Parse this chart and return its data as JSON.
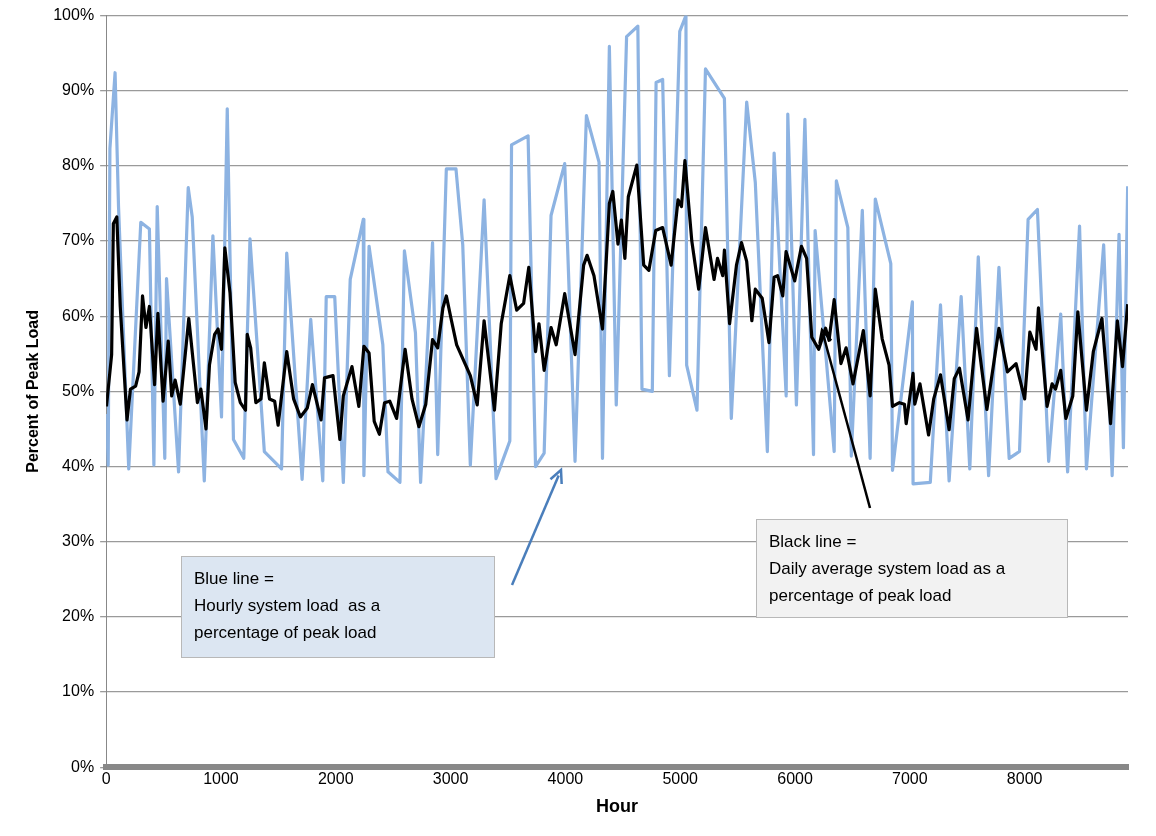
{
  "chart_data": {
    "type": "line",
    "xlabel": "Hour",
    "ylabel": "Percent of Peak Load",
    "xlim": [
      0,
      8900
    ],
    "xticks": [
      0,
      1000,
      2000,
      3000,
      4000,
      5000,
      6000,
      7000,
      8000
    ],
    "ylim": [
      0,
      100
    ],
    "yticks": [
      {
        "value": 0,
        "label": "0%"
      },
      {
        "value": 10,
        "label": "10%"
      },
      {
        "value": 20,
        "label": "20%"
      },
      {
        "value": 30,
        "label": "30%"
      },
      {
        "value": 40,
        "label": "40%"
      },
      {
        "value": 50,
        "label": "50%"
      },
      {
        "value": 60,
        "label": "60%"
      },
      {
        "value": 70,
        "label": "70%"
      },
      {
        "value": 80,
        "label": "80%"
      },
      {
        "value": 90,
        "label": "90%"
      },
      {
        "value": 100,
        "label": "100%"
      }
    ],
    "grid": "y",
    "legend": false,
    "marker": "none",
    "line_style": "solid",
    "series": [
      {
        "color": "#8db3e2",
        "x": [
          3,
          18,
          33,
          78,
          108,
          197,
          302,
          377,
          416,
          445,
          511,
          526,
          631,
          715,
          750,
          855,
          930,
          1005,
          1055,
          1109,
          1199,
          1253,
          1378,
          1528,
          1573,
          1707,
          1782,
          1887,
          1917,
          1991,
          2066,
          2126,
          2240,
          2245,
          2290,
          2410,
          2455,
          2559,
          2598,
          2694,
          2739,
          2843,
          2888,
          2963,
          3047,
          3106,
          3172,
          3292,
          3396,
          3516,
          3531,
          3675,
          3740,
          3815,
          3875,
          3994,
          4084,
          4183,
          4293,
          4323,
          4383,
          4443,
          4533,
          4631,
          4667,
          4757,
          4790,
          4847,
          4906,
          4996,
          5050,
          5056,
          5146,
          5220,
          5385,
          5445,
          5579,
          5654,
          5759,
          5818,
          5923,
          5937,
          6012,
          6086,
          6161,
          6175,
          6341,
          6360,
          6460,
          6490,
          6586,
          6654,
          6699,
          6834,
          6849,
          7022,
          7028,
          7178,
          7267,
          7342,
          7447,
          7522,
          7596,
          7686,
          7776,
          7865,
          7955,
          8030,
          8111,
          8209,
          8314,
          8374,
          8478,
          8538,
          8688,
          8762,
          8822,
          8860,
          8897
        ],
        "values": [
          47,
          40.2,
          82.3,
          92.4,
          74.6,
          39.7,
          72.5,
          71.6,
          40.2,
          74.6,
          41.1,
          65,
          39.3,
          77.1,
          73.2,
          38.1,
          70.7,
          46.6,
          87.6,
          43.6,
          41.1,
          70.3,
          42,
          39.7,
          68.4,
          38.3,
          59.6,
          38.1,
          62.6,
          62.6,
          37.9,
          64.9,
          72.9,
          38.8,
          69.3,
          56.2,
          39.3,
          37.9,
          68.7,
          57.8,
          37.9,
          69.8,
          41.6,
          79.6,
          79.6,
          69.5,
          40.2,
          75.5,
          38.4,
          43.4,
          82.8,
          84.0,
          40.0,
          41.8,
          73.4,
          80.3,
          40.7,
          86.7,
          80.5,
          41.1,
          95.9,
          48.2,
          97.2,
          98.6,
          50.3,
          50.0,
          91.1,
          91.5,
          52.1,
          97.9,
          100,
          53.5,
          47.5,
          92.9,
          89.0,
          46.4,
          88.5,
          77.8,
          42.0,
          81.7,
          49.4,
          86.9,
          48.2,
          86.2,
          41.6,
          71.4,
          42.0,
          78.0,
          71.8,
          41.4,
          74.1,
          41.1,
          75.6,
          67.0,
          39.5,
          61.9,
          37.7,
          37.9,
          61.5,
          38.1,
          62.6,
          39.7,
          67.9,
          38.8,
          66.5,
          41.1,
          42.0,
          72.9,
          74.2,
          40.7,
          60.3,
          39.3,
          72.0,
          39.7,
          69.5,
          38.8,
          70.9,
          42.5,
          77.3
        ]
      },
      {
        "color": "#000000",
        "x": [
          3,
          48,
          63,
          93,
          123,
          182,
          212,
          257,
          287,
          317,
          347,
          377,
          422,
          451,
          496,
          541,
          571,
          601,
          646,
          720,
          795,
          825,
          870,
          900,
          945,
          975,
          1005,
          1034,
          1079,
          1124,
          1169,
          1214,
          1229,
          1259,
          1304,
          1349,
          1378,
          1423,
          1468,
          1498,
          1573,
          1633,
          1692,
          1752,
          1797,
          1872,
          1902,
          1976,
          2036,
          2066,
          2141,
          2201,
          2245,
          2290,
          2335,
          2380,
          2425,
          2470,
          2530,
          2604,
          2664,
          2724,
          2784,
          2843,
          2888,
          2933,
          2963,
          3008,
          3053,
          3172,
          3232,
          3292,
          3382,
          3441,
          3516,
          3576,
          3636,
          3681,
          3740,
          3770,
          3815,
          3875,
          3920,
          3994,
          4084,
          4159,
          4189,
          4249,
          4323,
          4383,
          4413,
          4458,
          4488,
          4518,
          4548,
          4622,
          4682,
          4727,
          4787,
          4847,
          4921,
          4981,
          5011,
          5041,
          5101,
          5161,
          5220,
          5295,
          5325,
          5370,
          5385,
          5430,
          5490,
          5534,
          5579,
          5624,
          5654,
          5714,
          5773,
          5818,
          5848,
          5893,
          5922,
          5997,
          6056,
          6101,
          6146,
          6206,
          6266,
          6296,
          6341,
          6400,
          6445,
          6505,
          6595,
          6654,
          6699,
          6759,
          6819,
          6849,
          6909,
          6953,
          6968,
          7028,
          7043,
          7088,
          7163,
          7208,
          7267,
          7342,
          7387,
          7432,
          7507,
          7581,
          7671,
          7776,
          7850,
          7925,
          8000,
          8045,
          8099,
          8120,
          8195,
          8239,
          8269,
          8314,
          8359,
          8419,
          8463,
          8538,
          8598,
          8673,
          8748,
          8807,
          8852,
          8897
        ],
        "values": [
          48.0,
          54.9,
          72.3,
          73.2,
          61.3,
          46.2,
          50.3,
          50.7,
          52.6,
          62.7,
          58.5,
          61.3,
          50.9,
          60.4,
          48.7,
          56.7,
          49.4,
          51.5,
          48.3,
          59.7,
          48.5,
          50.3,
          45.0,
          53.5,
          57.6,
          58.3,
          55.6,
          69.1,
          63.1,
          51.2,
          48.5,
          47.5,
          57.6,
          55.8,
          48.5,
          49.0,
          53.8,
          49.0,
          48.7,
          45.5,
          55.3,
          49.0,
          46.6,
          47.8,
          50.9,
          46.2,
          51.8,
          52.1,
          43.6,
          49.4,
          53.3,
          48.0,
          56.0,
          55.1,
          46.0,
          44.3,
          48.5,
          48.7,
          46.4,
          55.6,
          49.0,
          45.3,
          48.3,
          56.9,
          55.8,
          61.1,
          62.7,
          59.4,
          56.2,
          52.1,
          48.2,
          59.4,
          47.5,
          59.0,
          65.4,
          60.8,
          61.7,
          66.5,
          55.3,
          59.0,
          52.8,
          58.5,
          56.2,
          63.0,
          54.9,
          66.8,
          68.1,
          65.4,
          58.3,
          75.0,
          76.6,
          69.6,
          72.8,
          67.7,
          75.9,
          80.1,
          66.8,
          66.1,
          71.4,
          71.8,
          66.8,
          75.5,
          74.6,
          80.7,
          70.0,
          63.6,
          71.8,
          64.9,
          67.7,
          65.4,
          68.8,
          59.0,
          66.8,
          69.8,
          67.3,
          59.4,
          63.6,
          62.4,
          56.5,
          65.2,
          65.4,
          62.7,
          68.6,
          64.7,
          69.3,
          67.7,
          57.2,
          55.6,
          58.4,
          56.8,
          62.2,
          53.7,
          55.8,
          51.0,
          58.1,
          49.4,
          63.6,
          57.0,
          53.5,
          48.0,
          48.5,
          48.3,
          45.7,
          52.4,
          48.3,
          51.0,
          44.2,
          49.0,
          52.2,
          44.9,
          51.7,
          53.1,
          46.2,
          58.4,
          47.6,
          58.4,
          52.6,
          53.7,
          49.0,
          57.9,
          55.6,
          61.1,
          48.0,
          51.0,
          50.3,
          52.8,
          46.4,
          49.4,
          60.6,
          47.5,
          55.3,
          59.7,
          45.7,
          59.4,
          53.3,
          61.6
        ]
      }
    ],
    "annotations": [
      "Blue line =\nHourly system load  as a\npercentage of peak load",
      "Black line =\nDaily average system load as a\npercentage of peak load"
    ]
  }
}
